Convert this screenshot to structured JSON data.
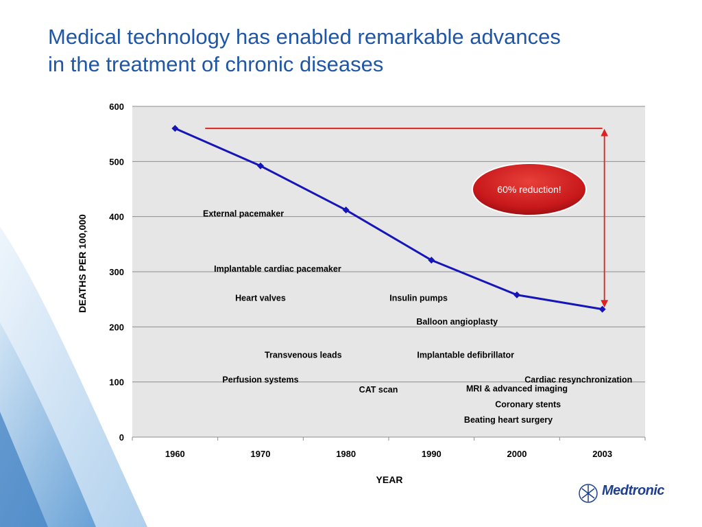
{
  "slide": {
    "title_line1": "Medical technology has enabled remarkable advances",
    "title_line2": "in the treatment of chronic diseases",
    "logo_text": "Medtronic",
    "colors": {
      "title": "#1f56a6",
      "series": "#1515b8",
      "reference_line": "#e0201e",
      "plot_bg": "#e6e6e6",
      "badge": "#c8181b"
    }
  },
  "chart_data": {
    "type": "line",
    "title": "",
    "xlabel": "YEAR",
    "ylabel": "DEATHS PER 100,000",
    "categories": [
      "1960",
      "1970",
      "1980",
      "1990",
      "2000",
      "2003"
    ],
    "series": [
      {
        "values": [
          560,
          492,
          412,
          321,
          258,
          232
        ]
      }
    ],
    "ylim": [
      0,
      600
    ],
    "yticks": [
      "0",
      "100",
      "200",
      "300",
      "400",
      "500",
      "600"
    ],
    "grid": true,
    "reference_level": 560,
    "badge": "60% reduction!",
    "annotations": [
      {
        "text": "External pacemaker",
        "cat": 0.8,
        "y": 400
      },
      {
        "text": "Implantable cardiac pacemaker",
        "cat": 1.2,
        "y": 300
      },
      {
        "text": "Heart valves",
        "cat": 1.0,
        "y": 247
      },
      {
        "text": "Insulin pumps",
        "cat": 2.85,
        "y": 247
      },
      {
        "text": "Balloon angioplasty",
        "cat": 3.3,
        "y": 204
      },
      {
        "text": "Transvenous leads",
        "cat": 1.5,
        "y": 144
      },
      {
        "text": "Implantable defibrillator",
        "cat": 3.4,
        "y": 144
      },
      {
        "text": "Perfusion systems",
        "cat": 1.0,
        "y": 99
      },
      {
        "text": "Cardiac resynchronization",
        "cat": 4.72,
        "y": 99
      },
      {
        "text": "CAT scan",
        "cat": 2.38,
        "y": 81
      },
      {
        "text": "MRI & advanced imaging",
        "cat": 4.0,
        "y": 83
      },
      {
        "text": "Coronary stents",
        "cat": 4.13,
        "y": 54
      },
      {
        "text": "Beating heart surgery",
        "cat": 3.9,
        "y": 26
      }
    ]
  }
}
